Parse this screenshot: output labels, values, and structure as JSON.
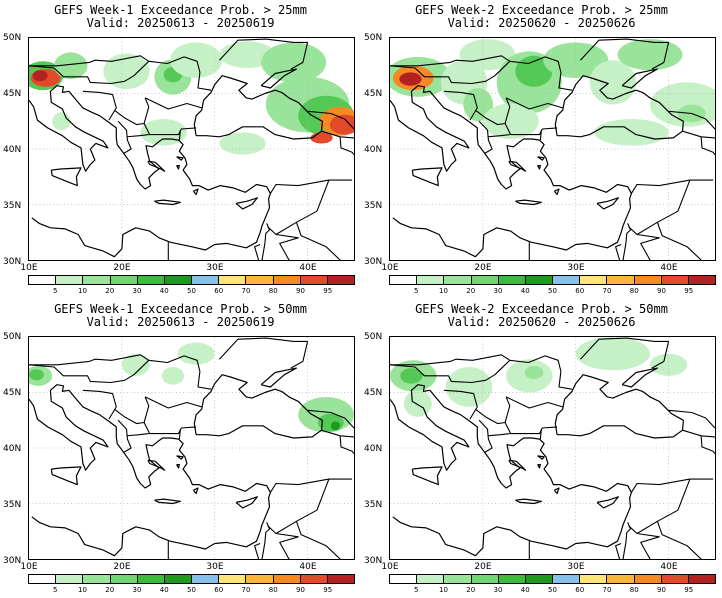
{
  "panels": [
    {
      "line1": "GEFS Week-1 Exceedance Prob. > 25mm",
      "line2": "Valid: 20250613 - 20250619",
      "blobs": [
        {
          "lon": 11.5,
          "lat": 46.6,
          "rx": 2.2,
          "ry": 1.3,
          "color": "#55c955"
        },
        {
          "lon": 11.8,
          "lat": 46.4,
          "rx": 1.6,
          "ry": 0.8,
          "color": "#e34a2a"
        },
        {
          "lon": 11.2,
          "lat": 46.6,
          "rx": 0.8,
          "ry": 0.5,
          "color": "#b22222"
        },
        {
          "lon": 14.5,
          "lat": 47.5,
          "rx": 1.8,
          "ry": 1.2,
          "color": "#9ae39a"
        },
        {
          "lon": 13.5,
          "lat": 42.5,
          "rx": 1.0,
          "ry": 0.8,
          "color": "#c6f1c6"
        },
        {
          "lon": 20.5,
          "lat": 47.0,
          "rx": 2.5,
          "ry": 1.6,
          "color": "#c6f1c6"
        },
        {
          "lon": 25.5,
          "lat": 46.5,
          "rx": 2.0,
          "ry": 1.6,
          "color": "#9ae39a"
        },
        {
          "lon": 25.5,
          "lat": 46.7,
          "rx": 1.0,
          "ry": 0.7,
          "color": "#55c955"
        },
        {
          "lon": 28.0,
          "lat": 48.0,
          "rx": 2.8,
          "ry": 1.6,
          "color": "#c6f1c6"
        },
        {
          "lon": 33.5,
          "lat": 48.5,
          "rx": 3.0,
          "ry": 1.2,
          "color": "#c6f1c6"
        },
        {
          "lon": 38.5,
          "lat": 47.8,
          "rx": 3.5,
          "ry": 1.8,
          "color": "#9ae39a"
        },
        {
          "lon": 40.0,
          "lat": 44.0,
          "rx": 4.5,
          "ry": 2.5,
          "color": "#9ae39a"
        },
        {
          "lon": 42.0,
          "lat": 43.0,
          "rx": 3.0,
          "ry": 1.8,
          "color": "#55c955"
        },
        {
          "lon": 43.5,
          "lat": 42.5,
          "rx": 2.2,
          "ry": 1.3,
          "color": "#f58a23"
        },
        {
          "lon": 44.0,
          "lat": 42.2,
          "rx": 1.6,
          "ry": 0.9,
          "color": "#e34a2a"
        },
        {
          "lon": 41.5,
          "lat": 41.0,
          "rx": 1.2,
          "ry": 0.5,
          "color": "#e34a2a"
        },
        {
          "lon": 24.5,
          "lat": 41.5,
          "rx": 2.5,
          "ry": 1.2,
          "color": "#c6f1c6"
        },
        {
          "lon": 33.0,
          "lat": 40.5,
          "rx": 2.5,
          "ry": 1.0,
          "color": "#c6f1c6"
        }
      ]
    },
    {
      "line1": "GEFS Week-2 Exceedance Prob. > 25mm",
      "line2": "Valid: 20250620 - 20250626",
      "blobs": [
        {
          "lon": 13.0,
          "lat": 46.5,
          "rx": 3.5,
          "ry": 1.8,
          "color": "#9ae39a"
        },
        {
          "lon": 12.5,
          "lat": 46.4,
          "rx": 2.2,
          "ry": 1.1,
          "color": "#f58a23"
        },
        {
          "lon": 12.2,
          "lat": 46.3,
          "rx": 1.2,
          "ry": 0.6,
          "color": "#b22222"
        },
        {
          "lon": 18.0,
          "lat": 46.0,
          "rx": 2.5,
          "ry": 2.0,
          "color": "#c6f1c6"
        },
        {
          "lon": 19.5,
          "lat": 44.0,
          "rx": 1.6,
          "ry": 1.5,
          "color": "#9ae39a"
        },
        {
          "lon": 20.5,
          "lat": 48.5,
          "rx": 3.0,
          "ry": 1.4,
          "color": "#c6f1c6"
        },
        {
          "lon": 25.0,
          "lat": 46.0,
          "rx": 3.5,
          "ry": 2.8,
          "color": "#9ae39a"
        },
        {
          "lon": 25.5,
          "lat": 47.0,
          "rx": 2.0,
          "ry": 1.4,
          "color": "#55c955"
        },
        {
          "lon": 30.0,
          "lat": 48.0,
          "rx": 3.5,
          "ry": 1.6,
          "color": "#9ae39a"
        },
        {
          "lon": 34.0,
          "lat": 46.0,
          "rx": 2.5,
          "ry": 2.0,
          "color": "#c6f1c6"
        },
        {
          "lon": 38.0,
          "lat": 48.5,
          "rx": 3.5,
          "ry": 1.4,
          "color": "#9ae39a"
        },
        {
          "lon": 42.0,
          "lat": 44.0,
          "rx": 4.0,
          "ry": 2.0,
          "color": "#c6f1c6"
        },
        {
          "lon": 42.5,
          "lat": 43.2,
          "rx": 1.5,
          "ry": 0.8,
          "color": "#9ae39a"
        },
        {
          "lon": 23.0,
          "lat": 42.5,
          "rx": 3.0,
          "ry": 1.6,
          "color": "#c6f1c6"
        },
        {
          "lon": 36.0,
          "lat": 41.5,
          "rx": 4.0,
          "ry": 1.2,
          "color": "#c6f1c6"
        }
      ]
    },
    {
      "line1": "GEFS Week-1 Exceedance Prob. > 50mm",
      "line2": "Valid: 20250613 - 20250619",
      "blobs": [
        {
          "lon": 11.0,
          "lat": 46.5,
          "rx": 1.5,
          "ry": 0.9,
          "color": "#9ae39a"
        },
        {
          "lon": 10.8,
          "lat": 46.6,
          "rx": 0.8,
          "ry": 0.5,
          "color": "#55c955"
        },
        {
          "lon": 21.5,
          "lat": 47.5,
          "rx": 1.5,
          "ry": 1.0,
          "color": "#c6f1c6"
        },
        {
          "lon": 25.5,
          "lat": 46.5,
          "rx": 1.2,
          "ry": 0.8,
          "color": "#c6f1c6"
        },
        {
          "lon": 28.0,
          "lat": 48.5,
          "rx": 2.0,
          "ry": 1.0,
          "color": "#c6f1c6"
        },
        {
          "lon": 42.0,
          "lat": 43.0,
          "rx": 3.0,
          "ry": 1.6,
          "color": "#9ae39a"
        },
        {
          "lon": 42.5,
          "lat": 42.3,
          "rx": 1.4,
          "ry": 0.8,
          "color": "#55c955"
        },
        {
          "lon": 43.0,
          "lat": 42.0,
          "rx": 0.5,
          "ry": 0.4,
          "color": "#1e9b1e"
        }
      ]
    },
    {
      "line1": "GEFS Week-2 Exceedance Prob. > 50mm",
      "line2": "Valid: 20250620 - 20250626",
      "blobs": [
        {
          "lon": 12.5,
          "lat": 46.5,
          "rx": 2.5,
          "ry": 1.4,
          "color": "#9ae39a"
        },
        {
          "lon": 12.3,
          "lat": 46.5,
          "rx": 1.2,
          "ry": 0.7,
          "color": "#55c955"
        },
        {
          "lon": 13.0,
          "lat": 44.0,
          "rx": 1.5,
          "ry": 1.2,
          "color": "#c6f1c6"
        },
        {
          "lon": 18.5,
          "lat": 45.5,
          "rx": 2.5,
          "ry": 1.8,
          "color": "#c6f1c6"
        },
        {
          "lon": 25.0,
          "lat": 46.5,
          "rx": 2.5,
          "ry": 1.5,
          "color": "#c6f1c6"
        },
        {
          "lon": 25.5,
          "lat": 46.8,
          "rx": 1.0,
          "ry": 0.6,
          "color": "#9ae39a"
        },
        {
          "lon": 34.0,
          "lat": 48.5,
          "rx": 4.0,
          "ry": 1.5,
          "color": "#c6f1c6"
        },
        {
          "lon": 40.0,
          "lat": 47.5,
          "rx": 2.0,
          "ry": 1.0,
          "color": "#c6f1c6"
        }
      ]
    }
  ],
  "lat_labels": [
    "50N",
    "45N",
    "40N",
    "35N",
    "30N"
  ],
  "lon_labels": [
    "10E",
    "20E",
    "30E",
    "40E"
  ],
  "colorbar": {
    "labels": [
      "5",
      "10",
      "20",
      "30",
      "40",
      "50",
      "60",
      "70",
      "80",
      "90",
      "95"
    ],
    "colors": [
      "#ffffff",
      "#c6f1c6",
      "#9ae39a",
      "#72d672",
      "#3dbb3d",
      "#1e9b1e",
      "#87c0ea",
      "#ffe47a",
      "#ffb43c",
      "#f58a23",
      "#e34a2a",
      "#b22222"
    ]
  }
}
